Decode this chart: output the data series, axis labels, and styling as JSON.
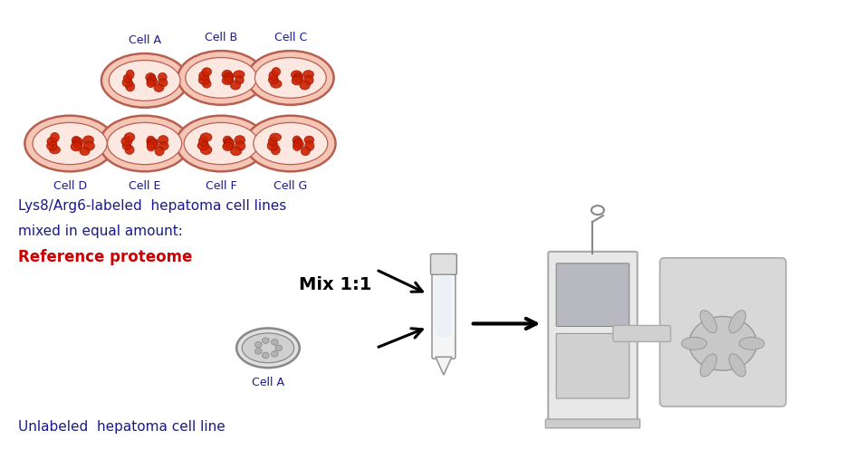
{
  "bg_color": "#ffffff",
  "fig_width": 9.33,
  "fig_height": 5.18,
  "dpi": 100,
  "cell_labels_top": [
    "Cell A",
    "Cell B",
    "Cell C"
  ],
  "cell_labels_bottom": [
    "Cell D",
    "Cell E",
    "Cell F",
    "Cell G"
  ],
  "label_fontsize": 9,
  "label_color": "#1a1a8c",
  "text1": "Lys8/Arg6-labeled  hepatoma cell lines",
  "text1_fontsize": 11,
  "text1_color": "#1a1a8c",
  "text2": "mixed in equal amount:",
  "text2_fontsize": 11,
  "text2_color": "#1a1a8c",
  "text3": "Reference proteome",
  "text3_fontsize": 12,
  "text3_color": "#cc0000",
  "mix_text": "Mix 1:1",
  "mix_text_fontsize": 14,
  "mix_text_color": "#000000",
  "unlabeled_text": "Unlabeled  hepatoma cell line",
  "unlabeled_text_fontsize": 11,
  "unlabeled_text_color": "#1a1a8c",
  "dish_fill": "#f5c5b5",
  "dish_edge": "#b86050",
  "dish_inner": "#fce8e0",
  "cell_color": "#cc2200",
  "cell_edge": "#991100",
  "gray_fill": "#e0e0e0",
  "gray_edge": "#888888",
  "gray_inner": "#d0d0d0",
  "gray_cell": "#aaaaaa"
}
